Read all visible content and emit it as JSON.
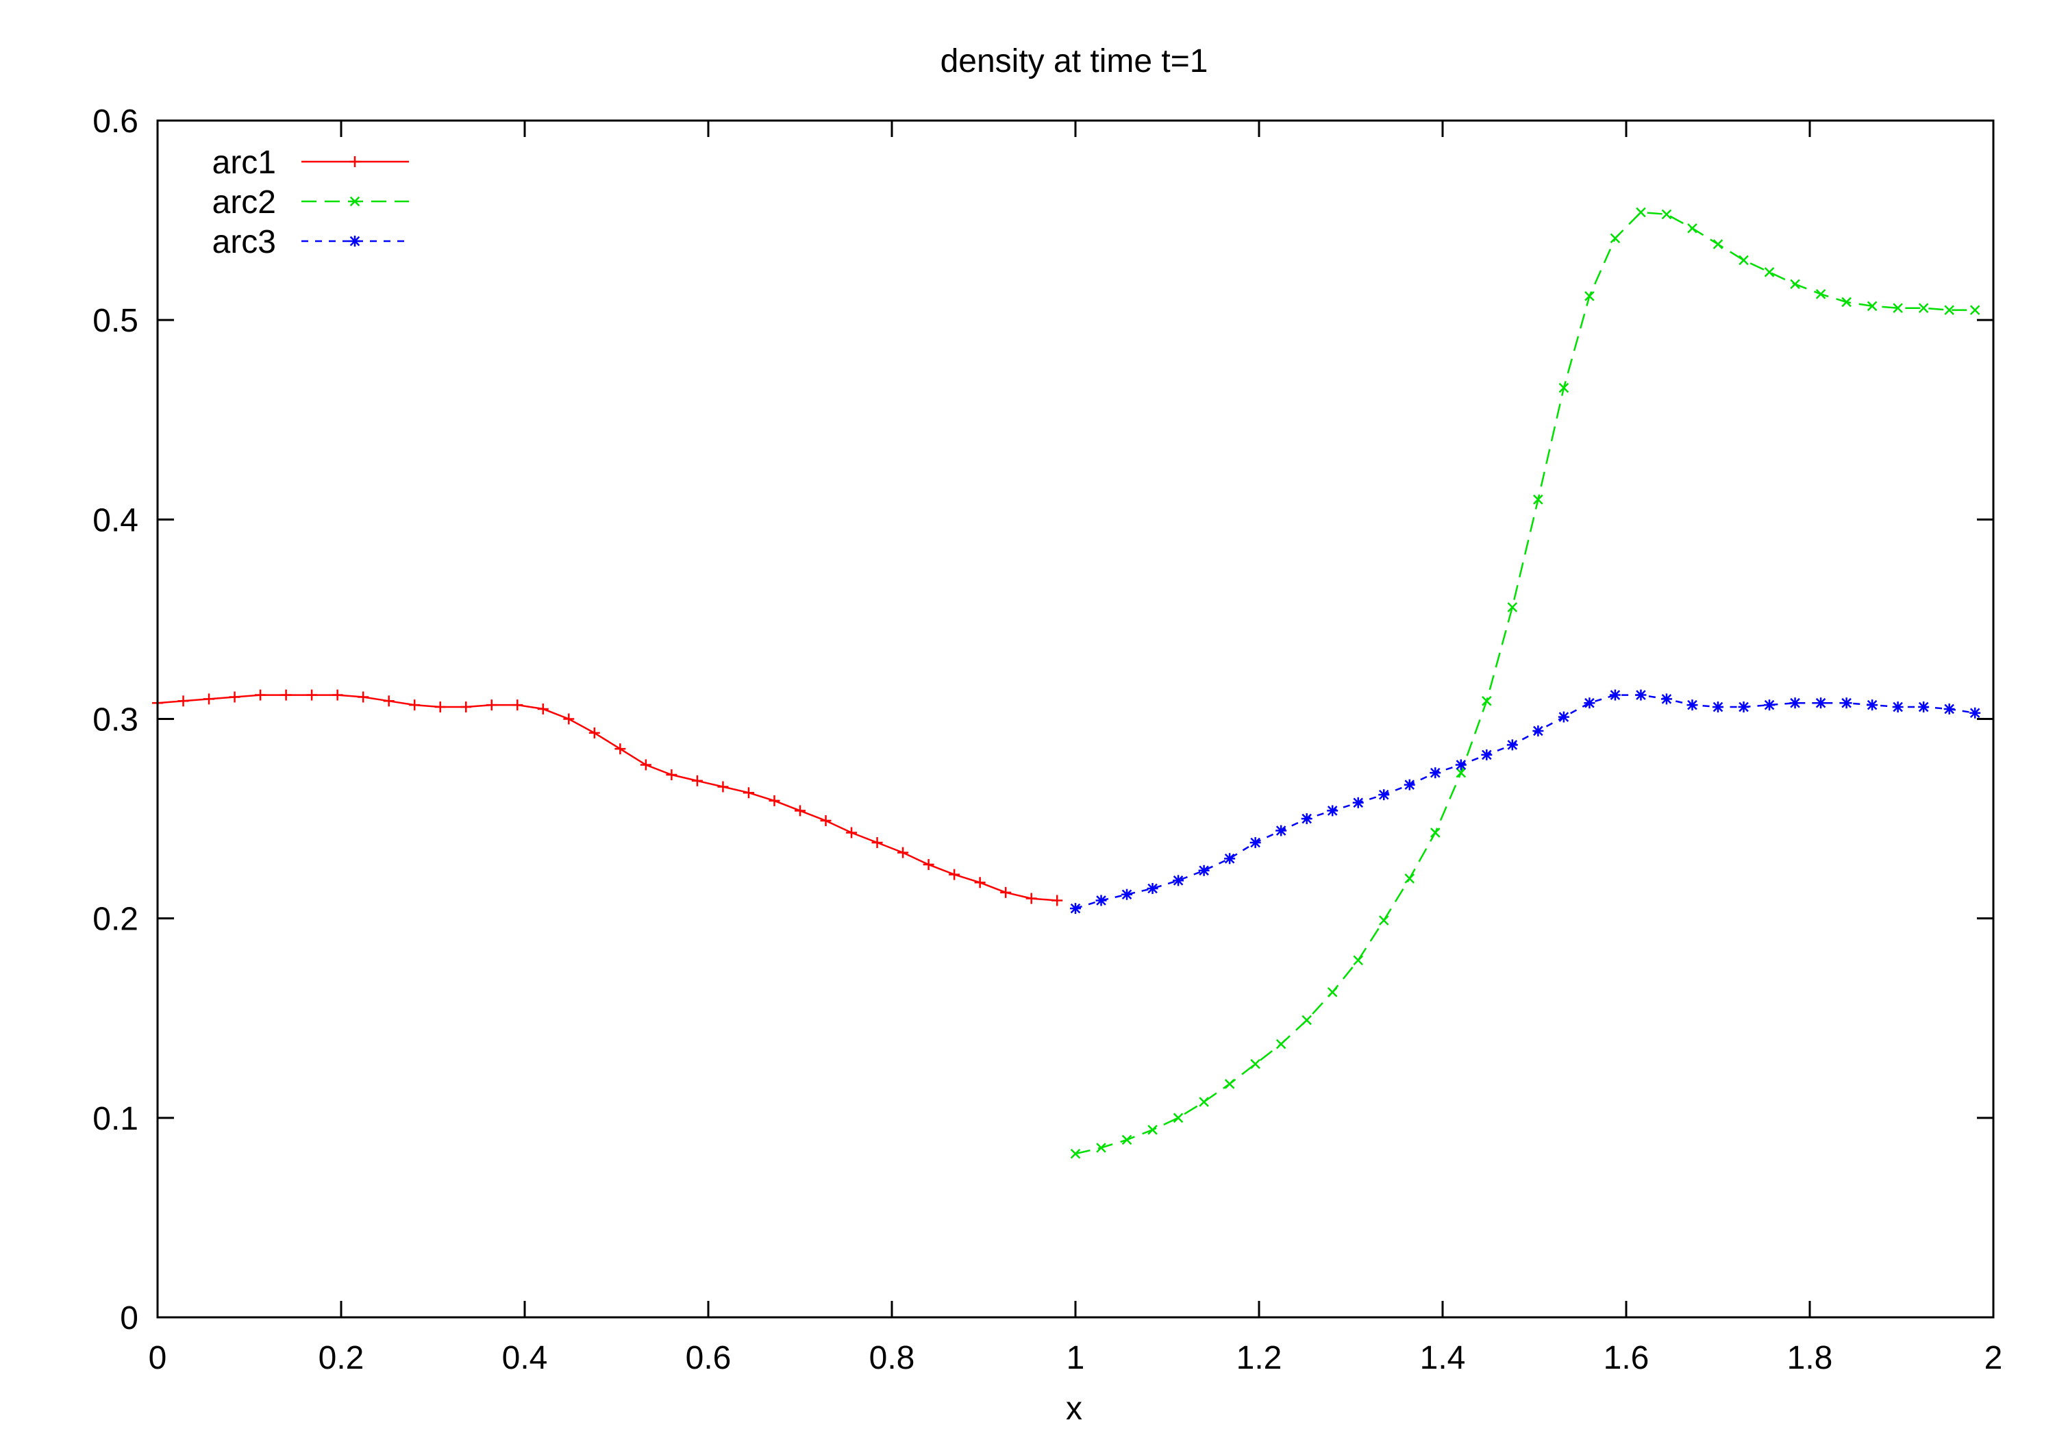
{
  "chart_data": {
    "type": "line",
    "title": "density at time t=1",
    "xlabel": "x",
    "ylabel": "",
    "xlim": [
      0,
      2
    ],
    "ylim": [
      0,
      0.6
    ],
    "xticks": [
      "0",
      "0.2",
      "0.4",
      "0.6",
      "0.8",
      "1",
      "1.2",
      "1.4",
      "1.6",
      "1.8",
      "2"
    ],
    "yticks": [
      "0",
      "0.1",
      "0.2",
      "0.3",
      "0.4",
      "0.5",
      "0.6"
    ],
    "grid": false,
    "legend_position": "top-left",
    "series": [
      {
        "name": "arc1",
        "color": "#ff0000",
        "line_style": "solid",
        "marker": "plus",
        "x": [
          0,
          0.028,
          0.056,
          0.084,
          0.112,
          0.14,
          0.168,
          0.196,
          0.224,
          0.252,
          0.28,
          0.308,
          0.336,
          0.364,
          0.392,
          0.42,
          0.448,
          0.476,
          0.504,
          0.532,
          0.56,
          0.588,
          0.616,
          0.644,
          0.672,
          0.7,
          0.728,
          0.756,
          0.784,
          0.812,
          0.84,
          0.868,
          0.896,
          0.924,
          0.952,
          0.98
        ],
        "y": [
          0.308,
          0.309,
          0.31,
          0.311,
          0.312,
          0.312,
          0.312,
          0.312,
          0.311,
          0.309,
          0.307,
          0.306,
          0.306,
          0.307,
          0.307,
          0.305,
          0.3,
          0.293,
          0.285,
          0.277,
          0.272,
          0.269,
          0.266,
          0.263,
          0.259,
          0.254,
          0.249,
          0.243,
          0.238,
          0.233,
          0.227,
          0.222,
          0.218,
          0.213,
          0.21,
          0.209
        ]
      },
      {
        "name": "arc2",
        "color": "#00e000",
        "line_style": "dashed",
        "marker": "cross",
        "x": [
          1,
          1.028,
          1.056,
          1.084,
          1.112,
          1.14,
          1.168,
          1.196,
          1.224,
          1.252,
          1.28,
          1.308,
          1.336,
          1.364,
          1.392,
          1.42,
          1.448,
          1.476,
          1.504,
          1.532,
          1.56,
          1.588,
          1.616,
          1.644,
          1.672,
          1.7,
          1.728,
          1.756,
          1.784,
          1.812,
          1.84,
          1.868,
          1.896,
          1.924,
          1.952,
          1.98
        ],
        "y": [
          0.082,
          0.085,
          0.089,
          0.094,
          0.1,
          0.108,
          0.117,
          0.127,
          0.137,
          0.149,
          0.163,
          0.179,
          0.199,
          0.22,
          0.243,
          0.273,
          0.309,
          0.356,
          0.41,
          0.466,
          0.512,
          0.541,
          0.554,
          0.553,
          0.546,
          0.538,
          0.53,
          0.524,
          0.518,
          0.513,
          0.509,
          0.507,
          0.506,
          0.506,
          0.505,
          0.505
        ]
      },
      {
        "name": "arc3",
        "color": "#0000ff",
        "line_style": "dotted",
        "marker": "star",
        "x": [
          1,
          1.028,
          1.056,
          1.084,
          1.112,
          1.14,
          1.168,
          1.196,
          1.224,
          1.252,
          1.28,
          1.308,
          1.336,
          1.364,
          1.392,
          1.42,
          1.448,
          1.476,
          1.504,
          1.532,
          1.56,
          1.588,
          1.616,
          1.644,
          1.672,
          1.7,
          1.728,
          1.756,
          1.784,
          1.812,
          1.84,
          1.868,
          1.896,
          1.924,
          1.952,
          1.98
        ],
        "y": [
          0.205,
          0.209,
          0.212,
          0.215,
          0.219,
          0.224,
          0.23,
          0.238,
          0.244,
          0.25,
          0.254,
          0.258,
          0.262,
          0.267,
          0.273,
          0.277,
          0.282,
          0.287,
          0.294,
          0.301,
          0.308,
          0.312,
          0.312,
          0.31,
          0.307,
          0.306,
          0.306,
          0.307,
          0.308,
          0.308,
          0.308,
          0.307,
          0.306,
          0.306,
          0.305,
          0.303
        ]
      }
    ]
  }
}
